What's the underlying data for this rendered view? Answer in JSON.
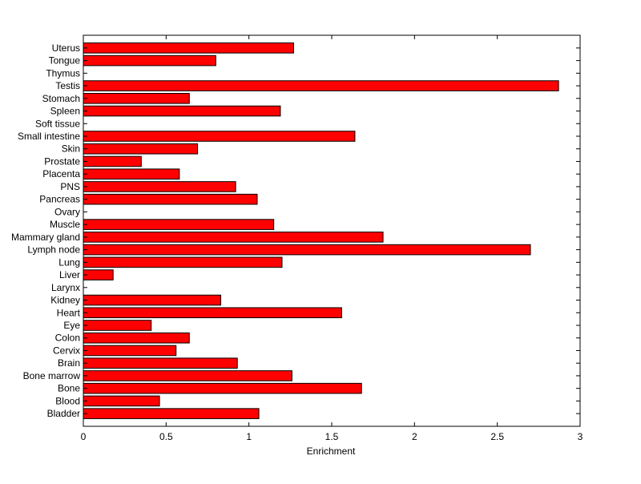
{
  "chart_data": {
    "type": "bar",
    "orientation": "horizontal",
    "title": "",
    "xlabel": "Enrichment",
    "ylabel": "",
    "xlim": [
      0,
      3
    ],
    "xticks": [
      0,
      0.5,
      1,
      1.5,
      2,
      2.5,
      3
    ],
    "xtick_labels": [
      "0",
      "0.5",
      "1",
      "1.5",
      "2",
      "2.5",
      "3"
    ],
    "grid": false,
    "legend": "none",
    "bar_color": "#ff0000",
    "edge_color": "#000000",
    "categories": [
      "Bladder",
      "Blood",
      "Bone",
      "Bone marrow",
      "Brain",
      "Cervix",
      "Colon",
      "Eye",
      "Heart",
      "Kidney",
      "Larynx",
      "Liver",
      "Lung",
      "Lymph node",
      "Mammary gland",
      "Muscle",
      "Ovary",
      "Pancreas",
      "PNS",
      "Placenta",
      "Prostate",
      "Skin",
      "Small intestine",
      "Soft tissue",
      "Spleen",
      "Stomach",
      "Testis",
      "Thymus",
      "Tongue",
      "Uterus"
    ],
    "values": [
      1.06,
      0.46,
      1.68,
      1.26,
      0.93,
      0.56,
      0.64,
      0.41,
      1.56,
      0.83,
      0,
      0.18,
      1.2,
      2.7,
      1.81,
      1.15,
      0,
      1.05,
      0.92,
      0.58,
      0.35,
      0.69,
      1.64,
      0,
      1.19,
      0.64,
      2.87,
      0,
      0.8,
      1.27
    ]
  }
}
